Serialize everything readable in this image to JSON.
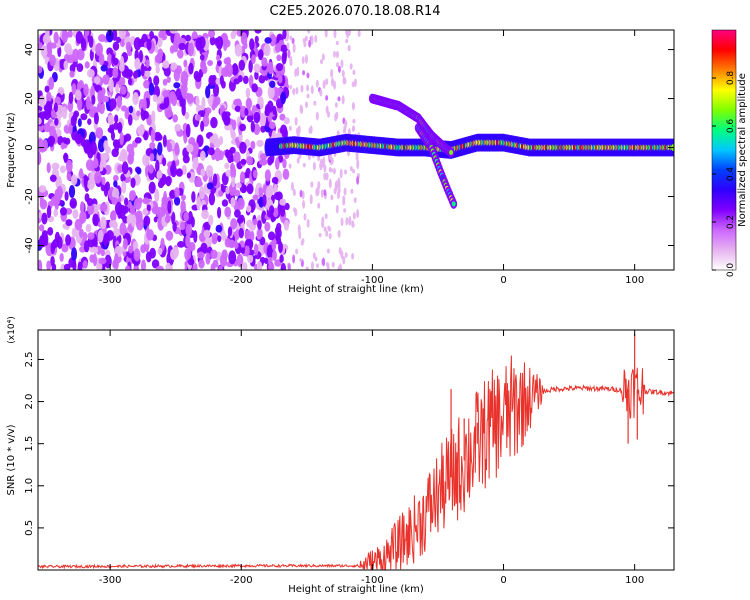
{
  "figure_title": "C2E5.2026.070.18.08.R14",
  "chart_data": [
    {
      "type": "heatmap",
      "title": "C2E5.2026.070.18.08.R14",
      "xlabel": "Height of straight line (km)",
      "ylabel": "Frequency (Hz)",
      "xlim": [
        -355,
        130
      ],
      "ylim": [
        -50,
        48
      ],
      "xticks": [
        -300,
        -200,
        -100,
        0,
        100
      ],
      "yticks": [
        -40,
        -20,
        0,
        20,
        40
      ],
      "colorbar": {
        "label": "Normalized spectral amplitude",
        "range": [
          0.0,
          1.0
        ],
        "ticks": [
          0.0,
          0.2,
          0.4,
          0.6,
          0.8
        ],
        "colormap": [
          "#ffffff",
          "#e6b3f0",
          "#cc66ff",
          "#8000ff",
          "#3000ff",
          "#0040ff",
          "#00c8ff",
          "#00ff80",
          "#80ff00",
          "#ffff00",
          "#ff8000",
          "#ff0000",
          "#ff0080"
        ]
      },
      "features": {
        "noise_region_x": [
          -355,
          -165
        ],
        "main_band": [
          [
            -180,
            0
          ],
          [
            -160,
            1
          ],
          [
            -140,
            0
          ],
          [
            -120,
            2
          ],
          [
            -100,
            1
          ],
          [
            -80,
            0
          ],
          [
            -60,
            0
          ],
          [
            -40,
            -1
          ],
          [
            -20,
            2
          ],
          [
            0,
            2
          ],
          [
            20,
            0
          ],
          [
            60,
            0
          ],
          [
            100,
            0
          ],
          [
            130,
            0
          ]
        ],
        "upper_branch": [
          [
            -100,
            20
          ],
          [
            -80,
            17
          ],
          [
            -65,
            12
          ],
          [
            -55,
            5
          ],
          [
            -45,
            0
          ],
          [
            -40,
            -2
          ]
        ],
        "lower_branch": [
          [
            -65,
            8
          ],
          [
            -55,
            0
          ],
          [
            -48,
            -10
          ],
          [
            -42,
            -18
          ],
          [
            -38,
            -23
          ]
        ]
      },
      "grid": false
    },
    {
      "type": "line",
      "xlabel": "Height of straight line (km)",
      "ylabel": "SNR (10 * v/v)",
      "ymultiplier": "(x10⁴)",
      "xlim": [
        -355,
        130
      ],
      "ylim": [
        0,
        2.85
      ],
      "xticks": [
        -300,
        -200,
        -100,
        0,
        100
      ],
      "yticks": [
        0.5,
        1.0,
        1.5,
        2.0,
        2.5
      ],
      "ytick_labels": [
        "0.5",
        "1.0",
        "1.5",
        "2.0",
        "2.5"
      ],
      "color": "#e8322b",
      "envelope": [
        [
          -355,
          0.04
        ],
        [
          -200,
          0.05
        ],
        [
          -110,
          0.05
        ],
        [
          -100,
          0.07
        ],
        [
          -90,
          0.15
        ],
        [
          -80,
          0.3
        ],
        [
          -70,
          0.45
        ],
        [
          -60,
          0.65
        ],
        [
          -50,
          0.9
        ],
        [
          -40,
          1.1
        ],
        [
          -30,
          1.3
        ],
        [
          -20,
          1.5
        ],
        [
          -10,
          1.7
        ],
        [
          0,
          1.8
        ],
        [
          10,
          1.95
        ],
        [
          20,
          2.05
        ],
        [
          30,
          2.12
        ],
        [
          40,
          2.15
        ],
        [
          60,
          2.16
        ],
        [
          80,
          2.15
        ],
        [
          90,
          2.14
        ],
        [
          100,
          2.15
        ],
        [
          110,
          2.12
        ],
        [
          130,
          2.1
        ]
      ],
      "spikes": [
        [
          -40,
          2.15
        ],
        [
          -30,
          1.8
        ],
        [
          -20,
          1.75
        ],
        [
          -10,
          1.95
        ],
        [
          95,
          1.5
        ],
        [
          100,
          2.8
        ],
        [
          102,
          1.55
        ]
      ],
      "grid": false
    }
  ]
}
